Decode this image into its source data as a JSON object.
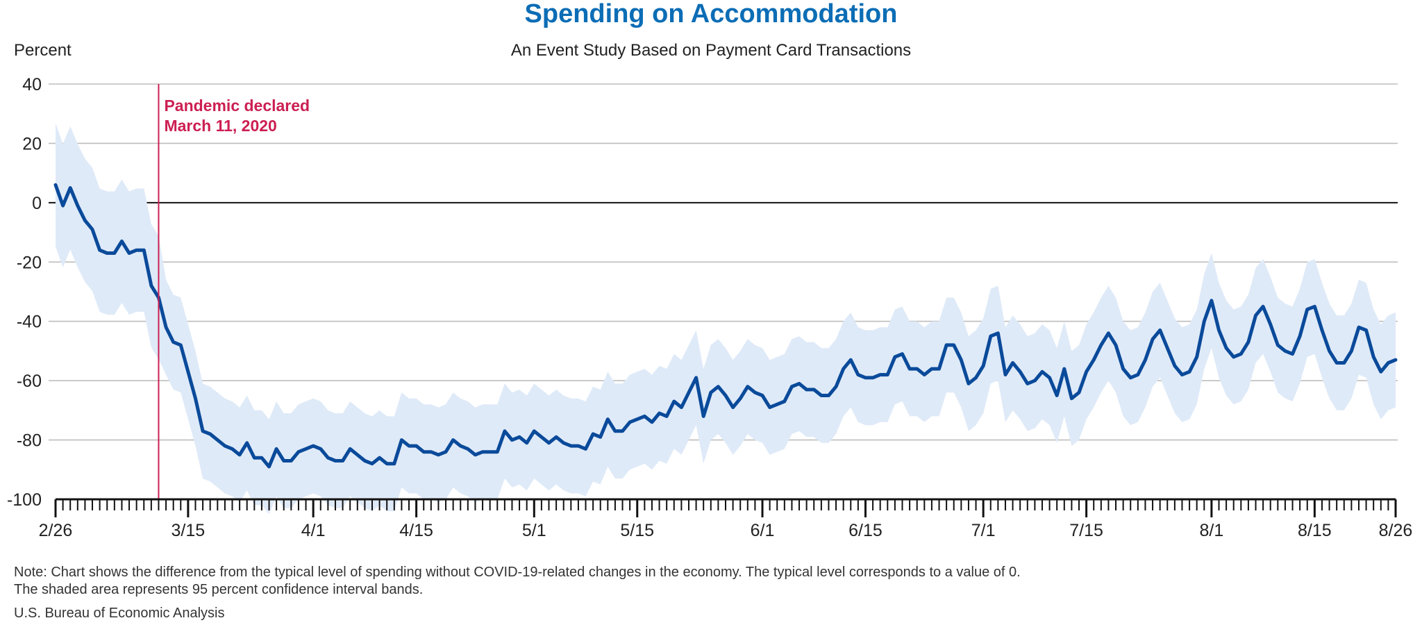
{
  "chart_data": {
    "type": "line",
    "title": "Spending on Accommodation",
    "subtitle": "An Event Study Based on Payment Card Transactions",
    "ylabel": "Percent",
    "xlabel": "",
    "ylim": [
      -100,
      40
    ],
    "yticks": [
      40,
      20,
      0,
      -20,
      -40,
      -60,
      -80,
      -100
    ],
    "x_start": "2/26",
    "x_end": "8/26",
    "xtick_labels": [
      {
        "label": "2/26",
        "day": 0
      },
      {
        "label": "3/15",
        "day": 18
      },
      {
        "label": "4/1",
        "day": 35
      },
      {
        "label": "4/15",
        "day": 49
      },
      {
        "label": "5/1",
        "day": 65
      },
      {
        "label": "5/15",
        "day": 79
      },
      {
        "label": "6/1",
        "day": 96
      },
      {
        "label": "6/15",
        "day": 110
      },
      {
        "label": "7/1",
        "day": 126
      },
      {
        "label": "7/15",
        "day": 140
      },
      {
        "label": "8/1",
        "day": 157
      },
      {
        "label": "8/15",
        "day": 171
      },
      {
        "label": "8/26",
        "day": 182
      }
    ],
    "grid": true,
    "zero_line": true,
    "annotation": {
      "line1": "Pandemic declared",
      "line2": "March 11, 2020",
      "day": 14,
      "color": "#cc1f52"
    },
    "series_color": "#0a4a9a",
    "band_color": "#dfeaf8",
    "band_width": 16,
    "series": [
      {
        "values": [
          6,
          -1,
          5,
          -1,
          -6,
          -9,
          -16,
          -17,
          -17,
          -13,
          -17,
          -16,
          -16,
          -28,
          -32,
          -42,
          -47,
          -48,
          -57,
          -66,
          -77,
          -78,
          -80,
          -82,
          -83,
          -85,
          -81,
          -86,
          -86,
          -89,
          -83,
          -87,
          -87,
          -84,
          -83,
          -82,
          -83,
          -86,
          -87,
          -87,
          -83,
          -85,
          -87,
          -88,
          -86,
          -88,
          -88,
          -80,
          -82,
          -82,
          -84,
          -84,
          -85,
          -84,
          -80,
          -82,
          -83,
          -85,
          -84,
          -84,
          -84,
          -77,
          -80,
          -79,
          -81,
          -77,
          -79,
          -81,
          -79,
          -81,
          -82,
          -82,
          -83,
          -78,
          -79,
          -73,
          -77,
          -77,
          -74,
          -73,
          -72,
          -74,
          -71,
          -72,
          -67,
          -69,
          -64,
          -59,
          -72,
          -64,
          -62,
          -65,
          -69,
          -66,
          -62,
          -64,
          -65,
          -69,
          -68,
          -67,
          -62,
          -61,
          -63,
          -63,
          -65,
          -65,
          -62,
          -56,
          -53,
          -58,
          -59,
          -59,
          -58,
          -58,
          -52,
          -51,
          -56,
          -56,
          -58,
          -56,
          -56,
          -48,
          -48,
          -53,
          -61,
          -59,
          -55,
          -45,
          -44,
          -58,
          -54,
          -57,
          -61,
          -60,
          -57,
          -59,
          -65,
          -56,
          -66,
          -64,
          -57,
          -53,
          -48,
          -44,
          -48,
          -56,
          -59,
          -58,
          -53,
          -46,
          -43,
          -49,
          -55,
          -58,
          -57,
          -52,
          -40,
          -33,
          -43,
          -49,
          -52,
          -51,
          -47,
          -38,
          -35,
          -41,
          -48,
          -50,
          -51,
          -45,
          -36,
          -35,
          -43,
          -50,
          -54,
          -54,
          -50,
          -42,
          -43,
          -52,
          -57,
          -54,
          -53
        ]
      }
    ]
  },
  "note_line1": "Note: Chart shows the difference from the typical level of spending without COVID-19-related changes in the economy. The typical level corresponds to a value of 0.",
  "note_line2": "The shaded area represents 95 percent confidence interval bands.",
  "source": "U.S. Bureau of Economic Analysis"
}
